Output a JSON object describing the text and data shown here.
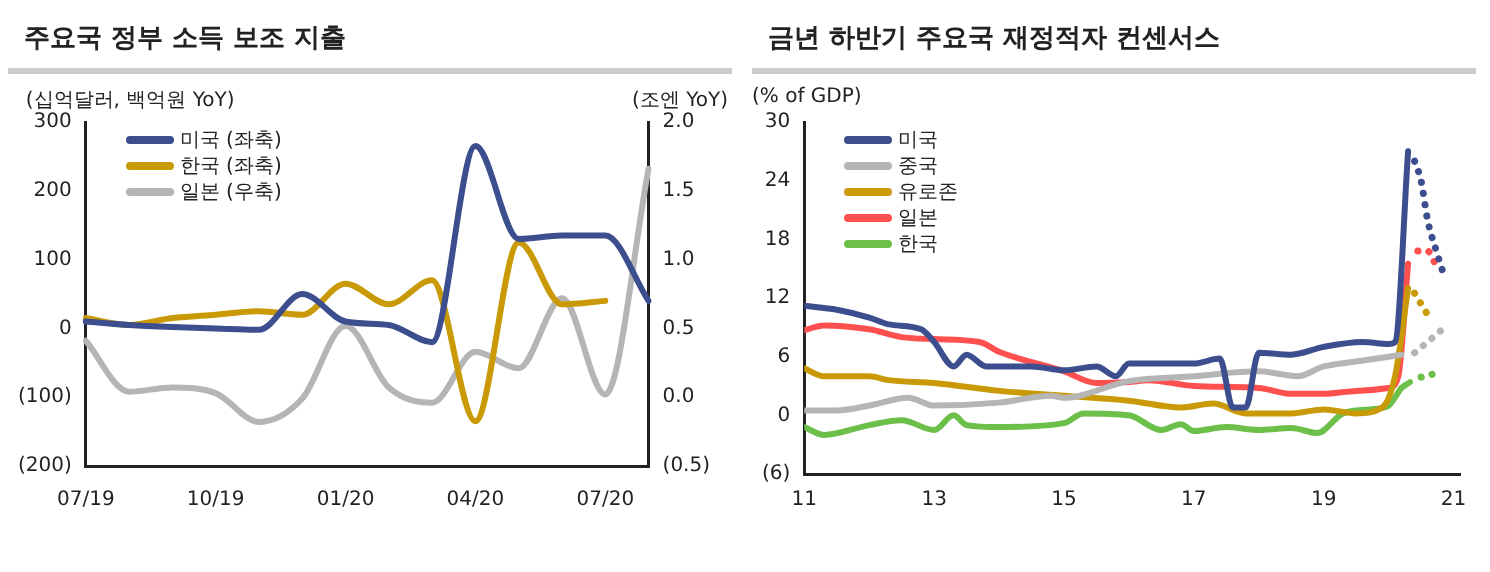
{
  "chart_data": [
    {
      "type": "line",
      "title": "주요국 정부 소득 보조 지출",
      "ylabel": "(십억달러, 백억원 YoY)",
      "y2label": "(조엔 YoY)",
      "legend": "top left",
      "marker": "none",
      "categories": [
        "07/19",
        null,
        null,
        "10/19",
        null,
        null,
        "01/20",
        null,
        null,
        "04/20",
        null,
        null,
        "07/20",
        null
      ],
      "ylim": [
        -200,
        300
      ],
      "yticks": [
        {
          "value": -200,
          "label": "(200)"
        },
        {
          "value": -100,
          "label": "(100)"
        },
        0,
        100,
        200,
        300
      ],
      "y2lim": [
        -0.5,
        2
      ],
      "y2ticks": [
        {
          "value": -0.5,
          "label": "(0.5)"
        },
        {
          "value": 0,
          "label": "0.0"
        },
        {
          "value": 0.5,
          "label": "0.5"
        },
        {
          "value": 1,
          "label": "1.0"
        },
        {
          "value": 1.5,
          "label": "1.5"
        },
        {
          "value": 2,
          "label": "2.0"
        }
      ],
      "series": [
        {
          "name": "미국 (좌축)",
          "color": "#3d4e8e",
          "values": [
            10,
            5,
            2,
            0,
            -2,
            50,
            10,
            5,
            -20,
            265,
            130,
            135,
            135,
            40
          ]
        },
        {
          "name": "한국 (좌축)",
          "color": "#c99a06",
          "values": [
            15,
            5,
            15,
            20,
            25,
            20,
            65,
            35,
            70,
            -135,
            125,
            35,
            40,
            null
          ]
        },
        {
          "name": "일본 (우축)",
          "color": "#b5b5b5",
          "axis": "y2",
          "values": [
            0.41,
            0.04,
            0.07,
            0.03,
            -0.18,
            -0.01,
            0.52,
            0.07,
            -0.04,
            0.33,
            0.21,
            0.72,
            0.02,
            1.66
          ]
        }
      ]
    },
    {
      "type": "line",
      "title": "금년 하반기 주요국 재정적자 컨센서스",
      "ylabel": "(% of GDP)",
      "legend": "top left",
      "marker": "none",
      "xlim": [
        2011,
        2021.1
      ],
      "xticks": [
        {
          "value": 2011,
          "label": "11"
        },
        {
          "value": 2013,
          "label": "13"
        },
        {
          "value": 2015,
          "label": "15"
        },
        {
          "value": 2017,
          "label": "17"
        },
        {
          "value": 2019,
          "label": "19"
        },
        {
          "value": 2021,
          "label": "21"
        }
      ],
      "ylim": [
        -6,
        30
      ],
      "yticks": [
        {
          "value": -6,
          "label": "(6)"
        },
        0,
        6,
        12,
        18,
        24,
        30
      ],
      "series": [
        {
          "name": "미국",
          "color": "#3d4e8e",
          "x": [
            2011,
            2011.5,
            2012,
            2012.3,
            2012.8,
            2013,
            2013.3,
            2013.5,
            2013.8,
            2014.5,
            2015,
            2015.5,
            2015.8,
            2016,
            2017,
            2017.4,
            2017.6,
            2017.8,
            2018,
            2018.5,
            2019,
            2019.6,
            2020,
            2020.1,
            2020.3
          ],
          "values": [
            11.2,
            10.8,
            10,
            9.3,
            8.8,
            7.5,
            5,
            6.2,
            5,
            5,
            4.6,
            5,
            4,
            5.3,
            5.3,
            5.8,
            0.8,
            0.8,
            6.4,
            6.2,
            7,
            7.5,
            7.3,
            7.5,
            27
          ]
        },
        {
          "name": "중국",
          "color": "#b5b5b5",
          "x": [
            2011,
            2011.5,
            2012,
            2012.6,
            2013,
            2014,
            2014.8,
            2015,
            2016,
            2017,
            2018,
            2018.6,
            2019,
            2019.5,
            2020,
            2020.2
          ],
          "values": [
            0.5,
            0.5,
            1,
            1.8,
            1,
            1.3,
            2,
            1.8,
            3.5,
            4,
            4.5,
            4,
            5,
            5.5,
            6,
            6.2
          ]
        },
        {
          "name": "유로존",
          "color": "#c99a06",
          "x": [
            2011,
            2011.3,
            2012,
            2012.3,
            2013,
            2014,
            2015,
            2016,
            2016.8,
            2017.3,
            2017.8,
            2018.5,
            2019,
            2019.5,
            2019.9,
            2020.1,
            2020.3
          ],
          "values": [
            4.8,
            4,
            4,
            3.6,
            3.3,
            2.5,
            2,
            1.5,
            0.8,
            1.2,
            0.2,
            0.2,
            0.6,
            0.2,
            0.8,
            4,
            13
          ]
        },
        {
          "name": "일본",
          "color": "#ff5050",
          "x": [
            2011,
            2011.3,
            2012,
            2012.5,
            2013,
            2013.7,
            2014,
            2015,
            2015.5,
            2016,
            2016.3,
            2017,
            2018,
            2018.5,
            2019,
            2019.5,
            2020,
            2020.15,
            2020.3
          ],
          "values": [
            8.7,
            9.2,
            8.8,
            8,
            7.8,
            7.5,
            6.5,
            4.5,
            3.3,
            3.4,
            3.6,
            3,
            2.8,
            2.2,
            2.2,
            2.5,
            2.8,
            4,
            15.5
          ]
        },
        {
          "name": "한국",
          "color": "#6cc04a",
          "x": [
            2011,
            2011.3,
            2012,
            2012.5,
            2013,
            2013.3,
            2013.5,
            2014,
            2015,
            2015.3,
            2016,
            2016.5,
            2016.8,
            2017,
            2017.5,
            2018,
            2018.5,
            2018.9,
            2019.3,
            2019.7,
            2020,
            2020.2,
            2020.33
          ],
          "values": [
            -1.2,
            -2,
            -1,
            -0.5,
            -1.5,
            0,
            -1,
            -1.2,
            -0.8,
            0.2,
            0,
            -1.5,
            -0.9,
            -1.6,
            -1.2,
            -1.5,
            -1.3,
            -1.8,
            0.2,
            0.6,
            1,
            2.8,
            3.4
          ]
        },
        {
          "color": "#3d4e8e",
          "line_style": "dotted",
          "x": [
            2020.4,
            2020.5,
            2020.6,
            2020.75,
            2020.83
          ],
          "values": [
            26,
            24,
            20,
            16.5,
            14.8
          ]
        },
        {
          "color": "#b5b5b5",
          "line_style": "dotted",
          "x": [
            2020.4,
            2020.6,
            2020.83
          ],
          "values": [
            6.4,
            7.5,
            8.8
          ]
        },
        {
          "color": "#c99a06",
          "line_style": "dotted",
          "x": [
            2020.4,
            2020.6
          ],
          "values": [
            12.5,
            10.3
          ]
        },
        {
          "color": "#ff5050",
          "line_style": "dotted",
          "x": [
            2020.45,
            2020.6,
            2020.75
          ],
          "values": [
            16.8,
            16.8,
            15
          ]
        },
        {
          "color": "#6cc04a",
          "line_style": "dotted",
          "x": [
            2020.5,
            2020.8
          ],
          "values": [
            3.9,
            4.4
          ]
        }
      ]
    }
  ]
}
